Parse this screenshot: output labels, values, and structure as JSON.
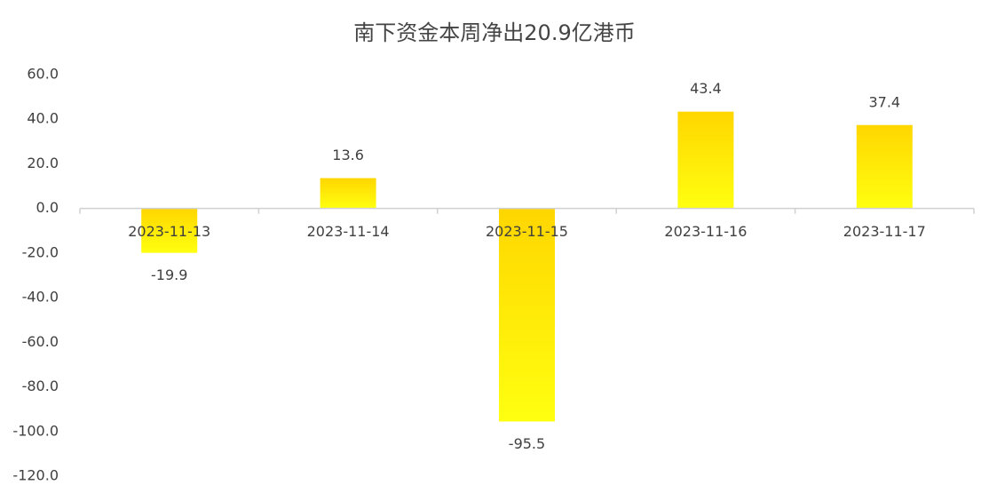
{
  "chart_data": {
    "type": "bar",
    "title": "南下资金本周净出20.9亿港币",
    "categories": [
      "2023-11-13",
      "2023-11-14",
      "2023-11-15",
      "2023-11-16",
      "2023-11-17"
    ],
    "values": [
      -19.9,
      13.6,
      -95.5,
      43.4,
      37.4
    ],
    "gradient": [
      "#FFD600",
      "#FFFF10"
    ],
    "ylim": [
      -120,
      60
    ],
    "yticks": [
      {
        "value": 60,
        "label": "60.0"
      },
      {
        "value": 40,
        "label": "40.0"
      },
      {
        "value": 20,
        "label": "20.0"
      },
      {
        "value": 0,
        "label": "0.0"
      },
      {
        "value": -20,
        "label": "-20.0"
      },
      {
        "value": -40,
        "label": "-40.0"
      },
      {
        "value": -60,
        "label": "-60.0"
      },
      {
        "value": -80,
        "label": "-80.0"
      },
      {
        "value": -100,
        "label": "-100.0"
      },
      {
        "value": -120,
        "label": "-120.0"
      }
    ],
    "grid": false
  }
}
